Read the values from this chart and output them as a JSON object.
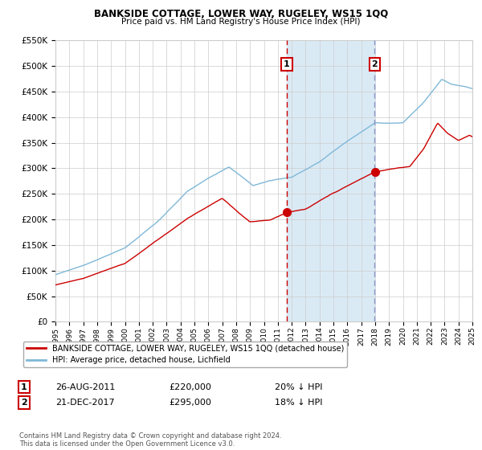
{
  "title": "BANKSIDE COTTAGE, LOWER WAY, RUGELEY, WS15 1QQ",
  "subtitle": "Price paid vs. HM Land Registry's House Price Index (HPI)",
  "legend_line1": "BANKSIDE COTTAGE, LOWER WAY, RUGELEY, WS15 1QQ (detached house)",
  "legend_line2": "HPI: Average price, detached house, Lichfield",
  "annotation1_label": "1",
  "annotation1_date": "26-AUG-2011",
  "annotation1_price": "£220,000",
  "annotation1_hpi": "20% ↓ HPI",
  "annotation1_year": 2011.65,
  "annotation1_value": 220000,
  "annotation2_label": "2",
  "annotation2_date": "21-DEC-2017",
  "annotation2_price": "£295,000",
  "annotation2_hpi": "18% ↓ HPI",
  "annotation2_year": 2017.97,
  "annotation2_value": 295000,
  "hpi_color": "#7fb8d8",
  "price_color": "#cc0000",
  "shaded_color": "#daeaf5",
  "grid_color": "#cccccc",
  "bg_color": "#ffffff",
  "ymin": 0,
  "ymax": 550000,
  "xmin": 1995,
  "xmax": 2025,
  "footnote": "Contains HM Land Registry data © Crown copyright and database right 2024.\nThis data is licensed under the Open Government Licence v3.0."
}
